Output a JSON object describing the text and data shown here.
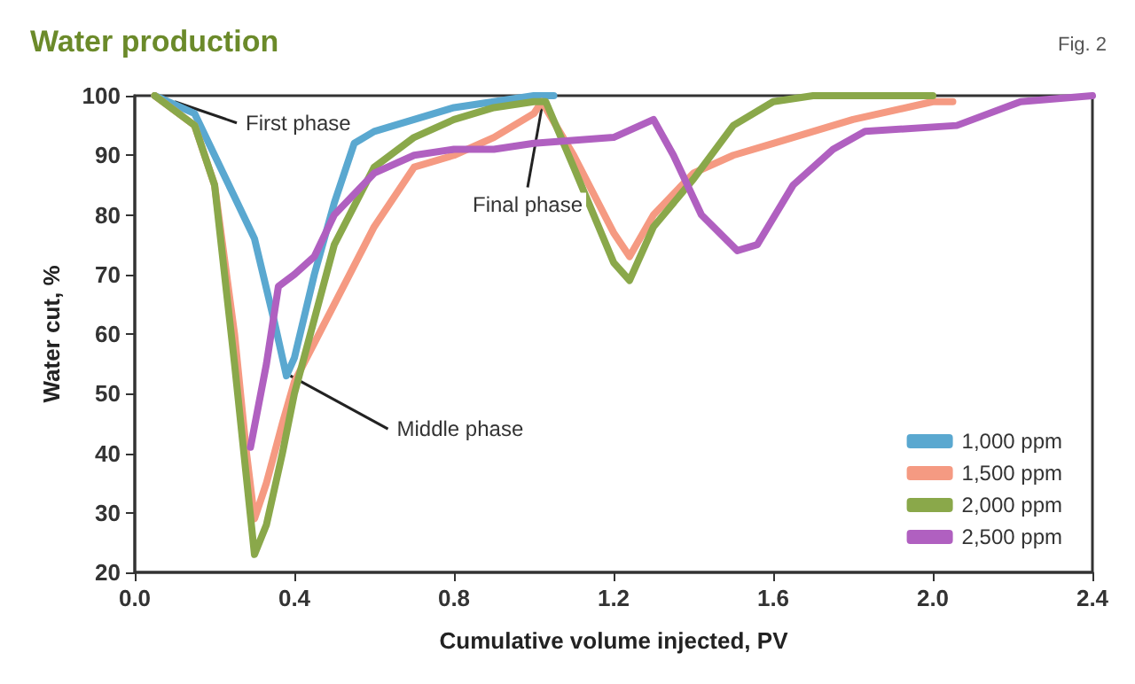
{
  "chart_data": {
    "type": "line",
    "title": "Water production",
    "xlabel": "Cumulative volume injected, PV",
    "ylabel": "Water cut, %",
    "xlim": [
      0,
      2.4
    ],
    "xticks": [
      {
        "value": 0,
        "label": "0.0"
      },
      0.4,
      0.8,
      1.2,
      1.6,
      {
        "value": 2,
        "label": "2.0"
      },
      2.4
    ],
    "ylim": [
      20,
      100
    ],
    "yticks": [
      20,
      30,
      40,
      50,
      60,
      70,
      80,
      90,
      100
    ],
    "grid": false,
    "legend": "bottom right",
    "marker": "none",
    "line_style": "solid",
    "annotations": [
      "Fig. 2",
      {
        "text": "First phase",
        "x": 0.1,
        "y": 99
      },
      {
        "text": "Middle phase",
        "x": 0.39,
        "y": 53
      },
      {
        "text": "Final phase",
        "x": 1.02,
        "y": 98
      }
    ],
    "series": [
      {
        "name": "1,000 ppm",
        "color": "#5aa8d0",
        "x": [
          0.05,
          0.15,
          0.2,
          0.25,
          0.3,
          0.35,
          0.38,
          0.4,
          0.45,
          0.5,
          0.55,
          0.6,
          0.7,
          0.8,
          0.9,
          1.0,
          1.05
        ],
        "values": [
          100,
          97,
          90,
          83,
          76,
          62,
          53,
          56,
          70,
          82,
          92,
          94,
          96,
          98,
          99,
          100,
          100
        ]
      },
      {
        "name": "1,500 ppm",
        "color": "#f59a82",
        "x": [
          0.05,
          0.15,
          0.2,
          0.25,
          0.28,
          0.3,
          0.33,
          0.37,
          0.4,
          0.5,
          0.6,
          0.7,
          0.8,
          0.9,
          1.0,
          1.02,
          1.1,
          1.2,
          1.24,
          1.3,
          1.4,
          1.5,
          1.6,
          1.8,
          2.0,
          2.05
        ],
        "values": [
          100,
          95,
          85,
          60,
          40,
          29,
          35,
          45,
          52,
          65,
          78,
          88,
          90,
          93,
          97,
          99,
          90,
          77,
          73,
          80,
          87,
          90,
          92,
          96,
          99,
          99
        ]
      },
      {
        "name": "2,000 ppm",
        "color": "#8aa84a",
        "x": [
          0.05,
          0.15,
          0.2,
          0.25,
          0.3,
          0.33,
          0.37,
          0.4,
          0.5,
          0.6,
          0.7,
          0.8,
          0.9,
          1.0,
          1.03,
          1.1,
          1.2,
          1.24,
          1.3,
          1.4,
          1.5,
          1.6,
          1.7,
          2.0
        ],
        "values": [
          100,
          95,
          85,
          55,
          23,
          28,
          40,
          50,
          75,
          88,
          93,
          96,
          98,
          99,
          99,
          88,
          72,
          69,
          78,
          86,
          95,
          99,
          100,
          100
        ]
      },
      {
        "name": "2,500 ppm",
        "color": "#b060c0",
        "x": [
          0.29,
          0.33,
          0.36,
          0.4,
          0.45,
          0.5,
          0.6,
          0.7,
          0.8,
          0.9,
          1.0,
          1.2,
          1.3,
          1.35,
          1.42,
          1.51,
          1.56,
          1.65,
          1.75,
          1.83,
          2.06,
          2.22,
          2.4
        ],
        "values": [
          41,
          55,
          68,
          70,
          73,
          80,
          87,
          90,
          91,
          91,
          92,
          93,
          96,
          90,
          80,
          74,
          75,
          85,
          91,
          94,
          95,
          99,
          100
        ]
      }
    ]
  }
}
